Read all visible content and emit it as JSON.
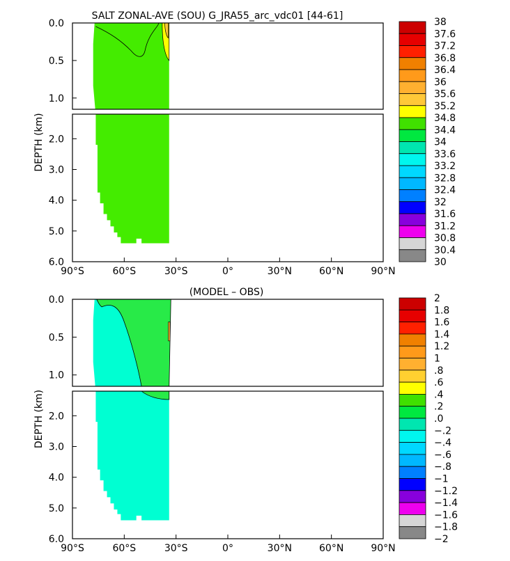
{
  "chart_data": [
    {
      "type": "contour",
      "title": "SALT ZONAL-AVE (SOU) G_JRA55_arc_vdc01 [44-61]",
      "xlabel": "",
      "ylabel": "DEPTH (km)",
      "xlim": [
        -90,
        90
      ],
      "x_ticks": [
        "90°S",
        "60°S",
        "30°S",
        "0°",
        "30°N",
        "60°N",
        "90°N"
      ],
      "upper_ylim": [
        0.0,
        1.15
      ],
      "upper_y_ticks": [
        "0.0",
        "0.5",
        "1.0"
      ],
      "lower_ylim": [
        1.2,
        6.0
      ],
      "lower_y_ticks": [
        "2.0",
        "3.0",
        "4.0",
        "5.0",
        "6.0"
      ],
      "colorbar": {
        "labels": [
          "38",
          "37.6",
          "37.2",
          "36.8",
          "36.4",
          "36",
          "35.6",
          "35.2",
          "34.8",
          "34.4",
          "34",
          "33.6",
          "33.2",
          "32.8",
          "32.4",
          "32",
          "31.6",
          "31.2",
          "30.8",
          "30.4",
          "30"
        ],
        "colors": [
          "#cc0000",
          "#e60000",
          "#ff2000",
          "#f08000",
          "#ff9a1a",
          "#ffb030",
          "#ffc838",
          "#ffff00",
          "#40e000",
          "#00e840",
          "#00e6b0",
          "#00f6ee",
          "#00d8ff",
          "#00b8ff",
          "#0080ff",
          "#0000ff",
          "#8800dd",
          "#ee00ee",
          "#d6d6d6",
          "#888888"
        ]
      },
      "field": {
        "dominant_value_range": [
          34.4,
          34.8
        ],
        "dominant_color": "#44ec00",
        "domain_lat_range": [
          -78,
          -34
        ],
        "max_depth_km": 5.4,
        "high_salinity_feature": "yellow (34.8–35.6) near surface at ~35°S"
      }
    },
    {
      "type": "contour",
      "title": "(MODEL – OBS)",
      "xlabel": "",
      "ylabel": "DEPTH (km)",
      "xlim": [
        -90,
        90
      ],
      "x_ticks": [
        "90°S",
        "60°S",
        "30°S",
        "0°",
        "30°N",
        "60°N",
        "90°N"
      ],
      "upper_ylim": [
        0.0,
        1.15
      ],
      "upper_y_ticks": [
        "0.0",
        "0.5",
        "1.0"
      ],
      "lower_ylim": [
        1.2,
        6.0
      ],
      "lower_y_ticks": [
        "2.0",
        "3.0",
        "4.0",
        "5.0",
        "6.0"
      ],
      "colorbar": {
        "labels": [
          "2",
          "1.8",
          "1.6",
          "1.4",
          "1.2",
          "1",
          ".8",
          ".6",
          ".4",
          ".2",
          ".0",
          "−.2",
          "−.4",
          "−.6",
          "−.8",
          "−1",
          "−1.2",
          "−1.4",
          "−1.6",
          "−1.8",
          "−2"
        ],
        "colors": [
          "#cc0000",
          "#e60000",
          "#ff2000",
          "#f08000",
          "#ff9a1a",
          "#ffb030",
          "#ffd030",
          "#ffff00",
          "#40e000",
          "#00e840",
          "#00e6b0",
          "#00f6ee",
          "#00d8ff",
          "#00b8ff",
          "#0080ff",
          "#0000ff",
          "#8800dd",
          "#ee00ee",
          "#d6d6d6",
          "#888888"
        ]
      },
      "field": {
        "dominant_value_range": [
          -0.2,
          0.0
        ],
        "dominant_color": "#00ffd2",
        "positive_region_range": [
          0.0,
          0.2
        ],
        "positive_region_color": "#28ea48",
        "domain_lat_range": [
          -78,
          -34
        ],
        "max_depth_km": 5.4
      }
    }
  ]
}
